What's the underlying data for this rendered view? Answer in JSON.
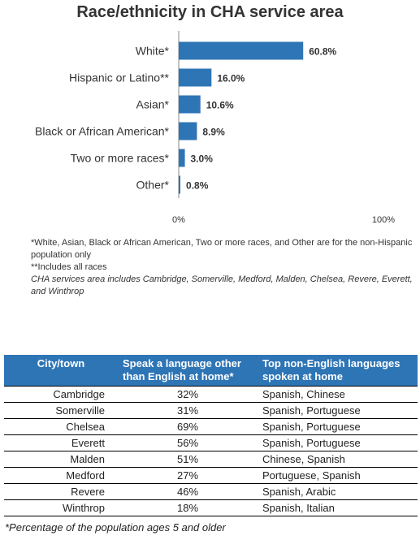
{
  "chart_data": {
    "type": "bar",
    "orientation": "horizontal",
    "title": "Race/ethnicity in CHA service area",
    "categories": [
      "White*",
      "Hispanic or Latino**",
      "Asian*",
      "Black or African American*",
      "Two or more races*",
      "Other*"
    ],
    "values": [
      60.8,
      16.0,
      10.6,
      8.9,
      3.0,
      0.8
    ],
    "data_labels": [
      "60.8%",
      "16.0%",
      "10.6%",
      "8.9%",
      "3.0%",
      "0.8%"
    ],
    "xlim": [
      0,
      100
    ],
    "xticks": [
      "0%",
      "100%"
    ],
    "bar_color": "#2e75b6",
    "grid": false
  },
  "notes": {
    "line1": "*White, Asian, Black or African American, Two  or more races, and Other are for the non-Hispanic population only",
    "line2": "**Includes all races",
    "line3": "CHA services area includes Cambridge, Somerville, Medford, Malden, Chelsea, Revere, Everett, and Winthrop"
  },
  "table": {
    "header_color": "#2e75b6",
    "headers": [
      "City/town",
      "Speak a language other than English at home*",
      "Top non-English languages spoken at home"
    ],
    "rows": [
      [
        "Cambridge",
        "32%",
        "Spanish, Chinese"
      ],
      [
        "Somerville",
        "31%",
        "Spanish, Portuguese"
      ],
      [
        "Chelsea",
        "69%",
        "Spanish, Portuguese"
      ],
      [
        "Everett",
        "56%",
        "Spanish, Portuguese"
      ],
      [
        "Malden",
        "51%",
        "Chinese, Spanish"
      ],
      [
        "Medford",
        "27%",
        "Portuguese, Spanish"
      ],
      [
        "Revere",
        "46%",
        "Spanish, Arabic"
      ],
      [
        "Winthrop",
        "18%",
        "Spanish, Italian"
      ]
    ],
    "footnote": "*Percentage of the population ages 5 and older"
  }
}
